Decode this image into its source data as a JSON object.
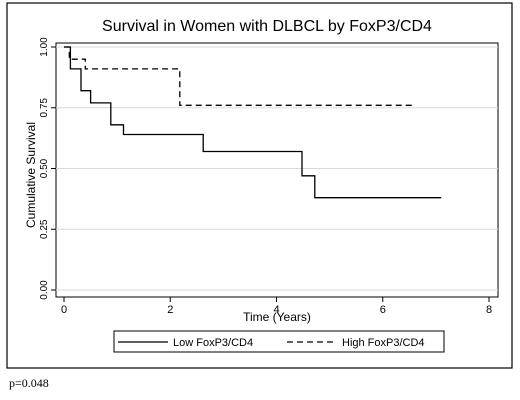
{
  "chart_data": {
    "type": "line",
    "title": "Survival in Women with DLBCL by FoxP3/CD4",
    "xlabel": "Time (Years)",
    "ylabel": "Cumulative Survival",
    "xlim": [
      0,
      8
    ],
    "ylim": [
      0,
      1
    ],
    "x_ticks": [
      "0",
      "2",
      "4",
      "6",
      "8"
    ],
    "y_ticks": [
      "0.00",
      "0.25",
      "0.50",
      "0.75",
      "1.00"
    ],
    "grid": true,
    "legend_position": "bottom",
    "series": [
      {
        "name": "Low FoxP3/CD4",
        "style": "solid",
        "points": [
          [
            0,
            1.0
          ],
          [
            0.12,
            1.0
          ],
          [
            0.12,
            0.91
          ],
          [
            0.32,
            0.91
          ],
          [
            0.32,
            0.82
          ],
          [
            0.5,
            0.82
          ],
          [
            0.5,
            0.77
          ],
          [
            0.88,
            0.77
          ],
          [
            0.88,
            0.68
          ],
          [
            1.12,
            0.68
          ],
          [
            1.12,
            0.64
          ],
          [
            2.62,
            0.64
          ],
          [
            2.62,
            0.57
          ],
          [
            4.48,
            0.57
          ],
          [
            4.48,
            0.47
          ],
          [
            4.72,
            0.47
          ],
          [
            4.72,
            0.38
          ],
          [
            7.1,
            0.38
          ]
        ]
      },
      {
        "name": "High FoxP3/CD4",
        "style": "dashed",
        "points": [
          [
            0,
            1.0
          ],
          [
            0.1,
            1.0
          ],
          [
            0.1,
            0.95
          ],
          [
            0.4,
            0.95
          ],
          [
            0.4,
            0.91
          ],
          [
            2.18,
            0.91
          ],
          [
            2.18,
            0.76
          ],
          [
            6.55,
            0.76
          ]
        ]
      }
    ]
  },
  "footnote": "p=0.048"
}
